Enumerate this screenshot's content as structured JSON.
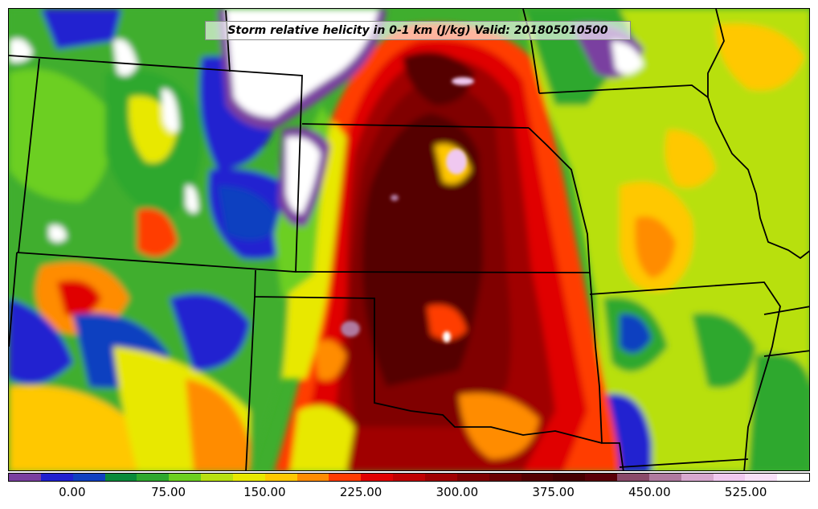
{
  "title": "Storm relative helicity in 0-1 km (J/kg) Valid: 201805010500",
  "colorbar": {
    "colors": [
      "#7a3fa0",
      "#2020d0",
      "#1040c0",
      "#0a8a3a",
      "#2ea82e",
      "#6ccf20",
      "#b8e010",
      "#e8e800",
      "#ffc800",
      "#ff8c00",
      "#ff3c00",
      "#e00000",
      "#c00000",
      "#a00000",
      "#800000",
      "#6a0000",
      "#550000",
      "#460000",
      "#5a0008",
      "#8a4a6a",
      "#b07aa0",
      "#d8a8d0",
      "#f0c8f0",
      "#f8e0f8",
      "#ffffff"
    ],
    "ticks": [
      {
        "label": "0.00",
        "value": 0
      },
      {
        "label": "75.00",
        "value": 75
      },
      {
        "label": "150.00",
        "value": 150
      },
      {
        "label": "225.00",
        "value": 225
      },
      {
        "label": "300.00",
        "value": 300
      },
      {
        "label": "375.00",
        "value": 375
      },
      {
        "label": "450.00",
        "value": 450
      },
      {
        "label": "525.00",
        "value": 525
      }
    ],
    "min": -50,
    "max": 575
  }
}
